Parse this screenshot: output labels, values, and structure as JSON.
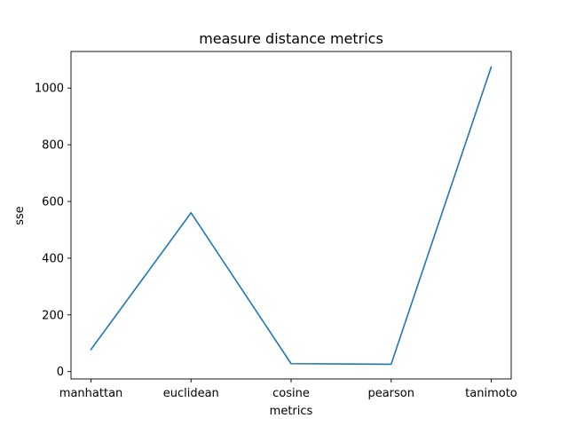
{
  "chart_data": {
    "type": "line",
    "title": "measure distance metrics",
    "xlabel": "metrics",
    "ylabel": "sse",
    "categories": [
      "manhattan",
      "euclidean",
      "cosine",
      "pearson",
      "tanimoto"
    ],
    "series": [
      {
        "values": [
          78,
          560,
          28,
          26,
          1074
        ],
        "color": "#1f77b4"
      }
    ],
    "yticks": [
      0,
      200,
      400,
      600,
      800,
      1000
    ],
    "ylim": [
      -26,
      1129
    ],
    "grid": false,
    "legend": "none"
  }
}
